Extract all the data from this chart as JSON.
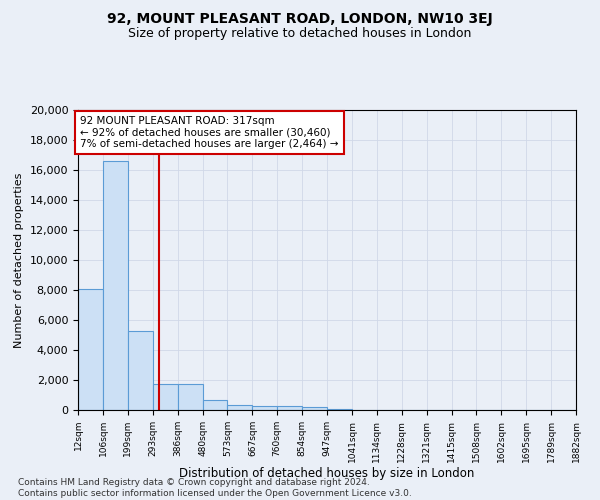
{
  "title": "92, MOUNT PLEASANT ROAD, LONDON, NW10 3EJ",
  "subtitle": "Size of property relative to detached houses in London",
  "xlabel": "Distribution of detached houses by size in London",
  "ylabel": "Number of detached properties",
  "footer_line1": "Contains HM Land Registry data © Crown copyright and database right 2024.",
  "footer_line2": "Contains public sector information licensed under the Open Government Licence v3.0.",
  "bar_color": "#cce0f5",
  "bar_edge_color": "#5b9bd5",
  "annotation_line1": "92 MOUNT PLEASANT ROAD: 317sqm",
  "annotation_line2": "← 92% of detached houses are smaller (30,460)",
  "annotation_line3": "7% of semi-detached houses are larger (2,464) →",
  "red_line_x": 317,
  "bin_edges": [
    12,
    106,
    199,
    293,
    386,
    480,
    573,
    667,
    760,
    854,
    947,
    1041,
    1134,
    1228,
    1321,
    1415,
    1508,
    1602,
    1695,
    1789,
    1882
  ],
  "bin_heights": [
    8100,
    16600,
    5300,
    1750,
    1750,
    700,
    350,
    300,
    250,
    200,
    50,
    30,
    20,
    15,
    10,
    8,
    5,
    4,
    3,
    2
  ],
  "ylim": [
    0,
    20000
  ],
  "yticks": [
    0,
    2000,
    4000,
    6000,
    8000,
    10000,
    12000,
    14000,
    16000,
    18000,
    20000
  ],
  "grid_color": "#d0d8e8",
  "annotation_box_color": "#ffffff",
  "annotation_box_edge": "#cc0000",
  "red_line_color": "#cc0000",
  "background_color": "#eaeff7",
  "title_fontsize": 10,
  "subtitle_fontsize": 9
}
